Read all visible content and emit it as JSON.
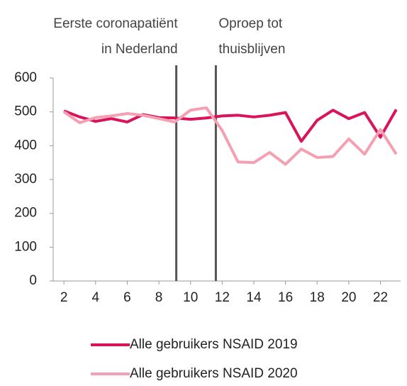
{
  "chart_data": {
    "type": "line",
    "x": [
      2,
      3,
      4,
      5,
      6,
      7,
      8,
      9,
      10,
      11,
      12,
      13,
      14,
      15,
      16,
      17,
      18,
      19,
      20,
      21,
      22,
      23
    ],
    "series": [
      {
        "name": "Alle gebruikers NSAID 2019",
        "color": "#d9145a",
        "values": [
          503,
          485,
          472,
          480,
          470,
          492,
          483,
          482,
          478,
          482,
          488,
          490,
          485,
          490,
          498,
          413,
          475,
          505,
          480,
          498,
          425,
          507
        ]
      },
      {
        "name": "Alle gebruikers NSAID 2020",
        "color": "#f4a0b2",
        "values": [
          500,
          468,
          483,
          488,
          495,
          490,
          480,
          470,
          505,
          512,
          445,
          352,
          350,
          380,
          345,
          390,
          365,
          368,
          420,
          375,
          448,
          375
        ]
      }
    ],
    "xlim": [
      1.5,
      23.5
    ],
    "xticks": [
      2,
      4,
      6,
      8,
      10,
      12,
      14,
      16,
      18,
      20,
      22
    ],
    "ylim": [
      0,
      600
    ],
    "yticks": [
      0,
      100,
      200,
      300,
      400,
      500,
      600
    ],
    "annotations": [
      {
        "lines": [
          "Eerste coronapatiënt",
          "in Nederland"
        ],
        "x": 9.1,
        "side": "left"
      },
      {
        "lines": [
          "Oproep tot",
          "thuisblijven"
        ],
        "x": 11.6,
        "side": "right"
      }
    ]
  }
}
